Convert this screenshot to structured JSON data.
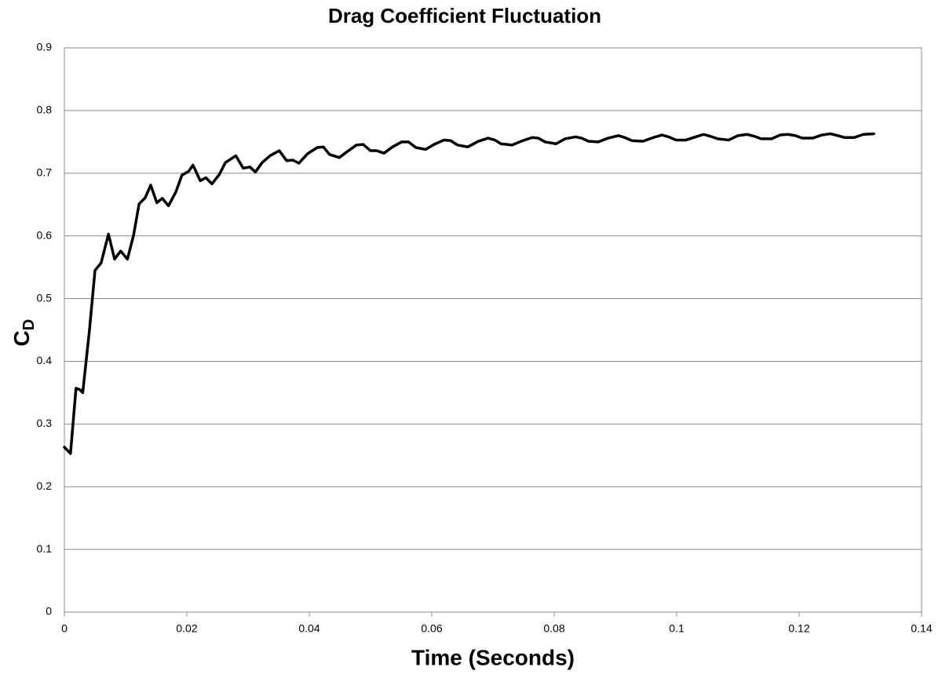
{
  "chart_data": {
    "type": "line",
    "title": "Drag Coefficient Fluctuation",
    "xlabel": "Time (Seconds)",
    "ylabel_main": "C",
    "ylabel_sub": "D",
    "xlim": [
      0,
      0.14
    ],
    "xticks": [
      0,
      0.02,
      0.04,
      0.06,
      0.08,
      0.1,
      0.12,
      0.14
    ],
    "ylim": [
      0,
      0.9
    ],
    "yticks": [
      0,
      0.1,
      0.2,
      0.3,
      0.4,
      0.5,
      0.6,
      0.7,
      0.8,
      0.9
    ],
    "grid": true,
    "x": [
      0,
      0.001,
      0.0019,
      0.0025,
      0.003,
      0.0041,
      0.005,
      0.006,
      0.0072,
      0.0082,
      0.0092,
      0.0103,
      0.0113,
      0.0122,
      0.0132,
      0.0141,
      0.0151,
      0.016,
      0.017,
      0.0182,
      0.0192,
      0.0203,
      0.021,
      0.0222,
      0.0231,
      0.0241,
      0.0253,
      0.0263,
      0.028,
      0.0292,
      0.0303,
      0.0312,
      0.0323,
      0.0336,
      0.0351,
      0.0363,
      0.0373,
      0.0383,
      0.0397,
      0.0413,
      0.0423,
      0.0433,
      0.0449,
      0.0464,
      0.0477,
      0.0488,
      0.05,
      0.051,
      0.0522,
      0.0536,
      0.0551,
      0.0562,
      0.0574,
      0.059,
      0.0604,
      0.062,
      0.0631,
      0.0642,
      0.0659,
      0.0676,
      0.0692,
      0.0703,
      0.0713,
      0.0731,
      0.0746,
      0.0764,
      0.0774,
      0.0785,
      0.0803,
      0.0818,
      0.0835,
      0.0845,
      0.0856,
      0.0872,
      0.0888,
      0.0905,
      0.0915,
      0.0927,
      0.0945,
      0.0962,
      0.0976,
      0.0987,
      0.0999,
      0.1015,
      0.1031,
      0.1044,
      0.1055,
      0.1067,
      0.1085,
      0.11,
      0.1115,
      0.1127,
      0.1138,
      0.1155,
      0.1169,
      0.1182,
      0.1194,
      0.1205,
      0.1222,
      0.1237,
      0.1251,
      0.1263,
      0.1274,
      0.129,
      0.1305,
      0.1322
    ],
    "series": [
      {
        "color": "#000000",
        "values": [
          0.263,
          0.253,
          0.357,
          0.355,
          0.35,
          0.45,
          0.545,
          0.557,
          0.603,
          0.563,
          0.576,
          0.563,
          0.601,
          0.651,
          0.661,
          0.681,
          0.653,
          0.66,
          0.648,
          0.67,
          0.697,
          0.703,
          0.713,
          0.688,
          0.693,
          0.683,
          0.698,
          0.717,
          0.728,
          0.708,
          0.71,
          0.702,
          0.717,
          0.728,
          0.736,
          0.72,
          0.721,
          0.716,
          0.731,
          0.741,
          0.742,
          0.73,
          0.725,
          0.736,
          0.745,
          0.746,
          0.736,
          0.736,
          0.732,
          0.742,
          0.75,
          0.75,
          0.741,
          0.738,
          0.746,
          0.753,
          0.752,
          0.745,
          0.742,
          0.751,
          0.756,
          0.753,
          0.747,
          0.745,
          0.751,
          0.757,
          0.756,
          0.75,
          0.747,
          0.755,
          0.758,
          0.756,
          0.751,
          0.75,
          0.756,
          0.76,
          0.757,
          0.752,
          0.751,
          0.757,
          0.761,
          0.758,
          0.753,
          0.753,
          0.758,
          0.762,
          0.759,
          0.755,
          0.753,
          0.76,
          0.762,
          0.759,
          0.755,
          0.755,
          0.761,
          0.762,
          0.76,
          0.756,
          0.756,
          0.761,
          0.763,
          0.76,
          0.757,
          0.757,
          0.762,
          0.763
        ]
      }
    ]
  }
}
